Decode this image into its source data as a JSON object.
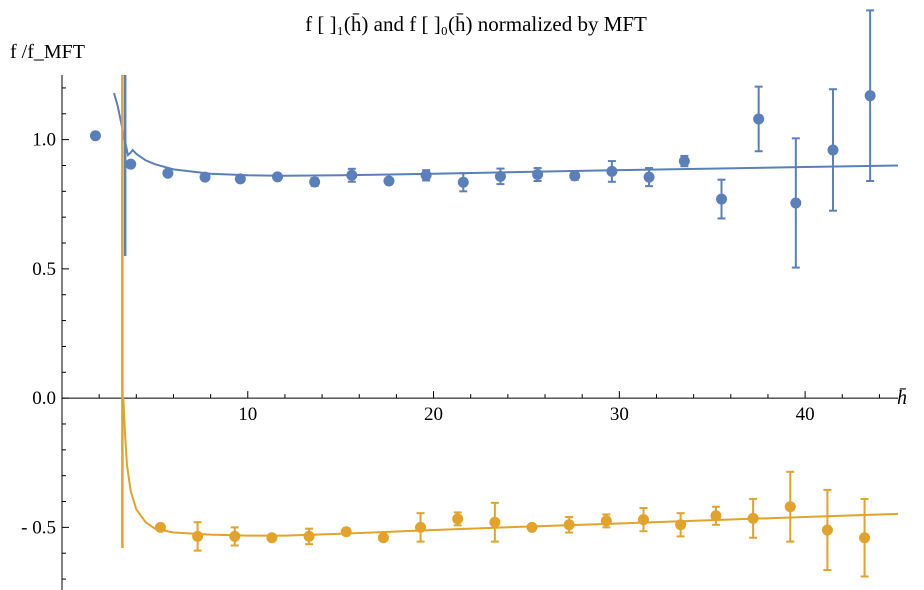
{
  "chart_data": {
    "type": "scatter",
    "title": "f [ ]₁(h̄) and f [ ]₀(h̄) normalized by MFT",
    "ylabel": "f    /f_MFT",
    "xlabel": "h̄",
    "xlim": [
      0,
      45
    ],
    "ylim": [
      -0.75,
      1.25
    ],
    "x_ticks": [
      10,
      20,
      30,
      40
    ],
    "y_ticks": [
      1.0,
      0.5,
      0.0,
      -0.5
    ],
    "x_tick_labels": [
      "10",
      "20",
      "30",
      "40"
    ],
    "y_tick_labels": [
      "1.0",
      "0.5",
      "0.0",
      "- 0.5"
    ],
    "legend": "none",
    "grid": false,
    "series": [
      {
        "color": "#5b7fba",
        "points": [
          {
            "x": 1.8,
            "y": 1.015,
            "err": 0
          },
          {
            "x": 3.7,
            "y": 0.905,
            "err": 0
          },
          {
            "x": 5.7,
            "y": 0.87,
            "err": 0.01
          },
          {
            "x": 7.7,
            "y": 0.855,
            "err": 0.01
          },
          {
            "x": 9.6,
            "y": 0.848,
            "err": 0.01
          },
          {
            "x": 11.6,
            "y": 0.856,
            "err": 0.01
          },
          {
            "x": 13.6,
            "y": 0.836,
            "err": 0.015
          },
          {
            "x": 15.6,
            "y": 0.862,
            "err": 0.025
          },
          {
            "x": 17.6,
            "y": 0.84,
            "err": 0.01
          },
          {
            "x": 19.6,
            "y": 0.862,
            "err": 0.02
          },
          {
            "x": 21.6,
            "y": 0.835,
            "err": 0.035
          },
          {
            "x": 23.6,
            "y": 0.858,
            "err": 0.03
          },
          {
            "x": 25.6,
            "y": 0.865,
            "err": 0.025
          },
          {
            "x": 27.6,
            "y": 0.86,
            "err": 0.015
          },
          {
            "x": 29.6,
            "y": 0.877,
            "err": 0.04
          },
          {
            "x": 31.6,
            "y": 0.855,
            "err": 0.035
          },
          {
            "x": 33.5,
            "y": 0.917,
            "err": 0.02
          },
          {
            "x": 35.5,
            "y": 0.77,
            "err": 0.075
          },
          {
            "x": 37.5,
            "y": 1.08,
            "err": 0.125
          },
          {
            "x": 39.5,
            "y": 0.755,
            "err": 0.25
          },
          {
            "x": 41.5,
            "y": 0.96,
            "err": 0.235
          },
          {
            "x": 43.5,
            "y": 1.17,
            "err": 0.33
          }
        ],
        "curve": [
          [
            2.8,
            1.18
          ],
          [
            3.0,
            1.13
          ],
          [
            3.2,
            1.06
          ],
          [
            3.4,
            0.99
          ],
          [
            3.55,
            0.94
          ],
          [
            3.7,
            0.95
          ],
          [
            3.8,
            0.96
          ],
          [
            4.0,
            0.945
          ],
          [
            4.5,
            0.92
          ],
          [
            5,
            0.905
          ],
          [
            6,
            0.885
          ],
          [
            8,
            0.868
          ],
          [
            10,
            0.862
          ],
          [
            12,
            0.86
          ],
          [
            15,
            0.862
          ],
          [
            20,
            0.868
          ],
          [
            25,
            0.875
          ],
          [
            30,
            0.882
          ],
          [
            35,
            0.888
          ],
          [
            40,
            0.894
          ],
          [
            45,
            0.9
          ]
        ],
        "spike": {
          "x": 3.4,
          "y_top": 1.25,
          "y_bottom": 0.55
        }
      },
      {
        "color": "#e3a22c",
        "points": [
          {
            "x": 5.3,
            "y": -0.5,
            "err": 0
          },
          {
            "x": 7.3,
            "y": -0.535,
            "err": 0.055
          },
          {
            "x": 9.3,
            "y": -0.535,
            "err": 0.035
          },
          {
            "x": 11.3,
            "y": -0.54,
            "err": 0.01
          },
          {
            "x": 13.3,
            "y": -0.535,
            "err": 0.03
          },
          {
            "x": 15.3,
            "y": -0.517,
            "err": 0.01
          },
          {
            "x": 17.3,
            "y": -0.54,
            "err": 0.01
          },
          {
            "x": 19.3,
            "y": -0.5,
            "err": 0.055
          },
          {
            "x": 21.3,
            "y": -0.467,
            "err": 0.025
          },
          {
            "x": 23.3,
            "y": -0.48,
            "err": 0.075
          },
          {
            "x": 25.3,
            "y": -0.5,
            "err": 0.01
          },
          {
            "x": 27.3,
            "y": -0.49,
            "err": 0.03
          },
          {
            "x": 29.3,
            "y": -0.475,
            "err": 0.025
          },
          {
            "x": 31.3,
            "y": -0.47,
            "err": 0.045
          },
          {
            "x": 33.3,
            "y": -0.49,
            "err": 0.045
          },
          {
            "x": 35.2,
            "y": -0.455,
            "err": 0.035
          },
          {
            "x": 37.2,
            "y": -0.465,
            "err": 0.075
          },
          {
            "x": 39.2,
            "y": -0.42,
            "err": 0.135
          },
          {
            "x": 41.2,
            "y": -0.51,
            "err": 0.155
          },
          {
            "x": 43.2,
            "y": -0.54,
            "err": 0.15
          }
        ],
        "curve": [
          [
            3.3,
            0.0
          ],
          [
            3.4,
            -0.15
          ],
          [
            3.5,
            -0.26
          ],
          [
            3.7,
            -0.36
          ],
          [
            4.0,
            -0.43
          ],
          [
            4.5,
            -0.48
          ],
          [
            5,
            -0.505
          ],
          [
            6,
            -0.52
          ],
          [
            8,
            -0.528
          ],
          [
            10,
            -0.532
          ],
          [
            12,
            -0.532
          ],
          [
            15,
            -0.525
          ],
          [
            20,
            -0.51
          ],
          [
            25,
            -0.497
          ],
          [
            30,
            -0.485
          ],
          [
            35,
            -0.472
          ],
          [
            40,
            -0.46
          ],
          [
            45,
            -0.448
          ]
        ],
        "spike": {
          "x": 3.25,
          "y_top": 1.25,
          "y_bottom": -0.58
        }
      }
    ]
  }
}
